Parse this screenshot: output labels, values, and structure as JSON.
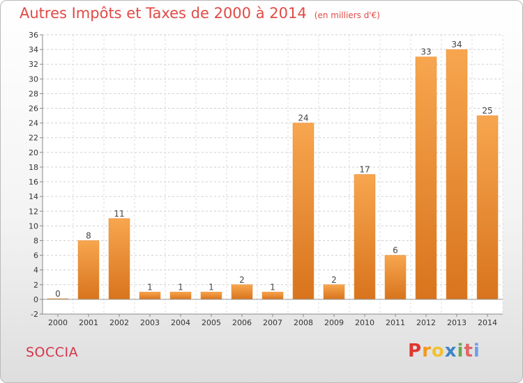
{
  "chart_data": {
    "type": "bar",
    "title": "Autres Impôts et Taxes de 2000 à 2014",
    "subtitle": "(en milliers d'€)",
    "xlabel": "",
    "ylabel": "",
    "categories": [
      "2000",
      "2001",
      "2002",
      "2003",
      "2004",
      "2005",
      "2006",
      "2007",
      "2008",
      "2009",
      "2010",
      "2011",
      "2012",
      "2013",
      "2014"
    ],
    "values": [
      0,
      8,
      11,
      1,
      1,
      1,
      2,
      1,
      24,
      2,
      17,
      6,
      33,
      34,
      25
    ],
    "ylim": [
      -2,
      36
    ],
    "yticks": [
      -2,
      0,
      2,
      4,
      6,
      8,
      10,
      12,
      14,
      16,
      18,
      20,
      22,
      24,
      26,
      28,
      30,
      32,
      34,
      36
    ],
    "grid": "horizontal-dashed",
    "bar_color_top": "#f7a64f",
    "bar_color_bottom": "#d8741d",
    "title_color": "#e04a45"
  },
  "footer": {
    "commune": "SOCCIA",
    "logo_letters": [
      "P",
      "r",
      "o",
      "x",
      "i",
      "t",
      "i"
    ],
    "logo_colors": [
      "#e0362c",
      "#f19a1a",
      "#f1c232",
      "#3d85c6",
      "#6aa84f",
      "#e06666",
      "#6d9eeb"
    ]
  }
}
